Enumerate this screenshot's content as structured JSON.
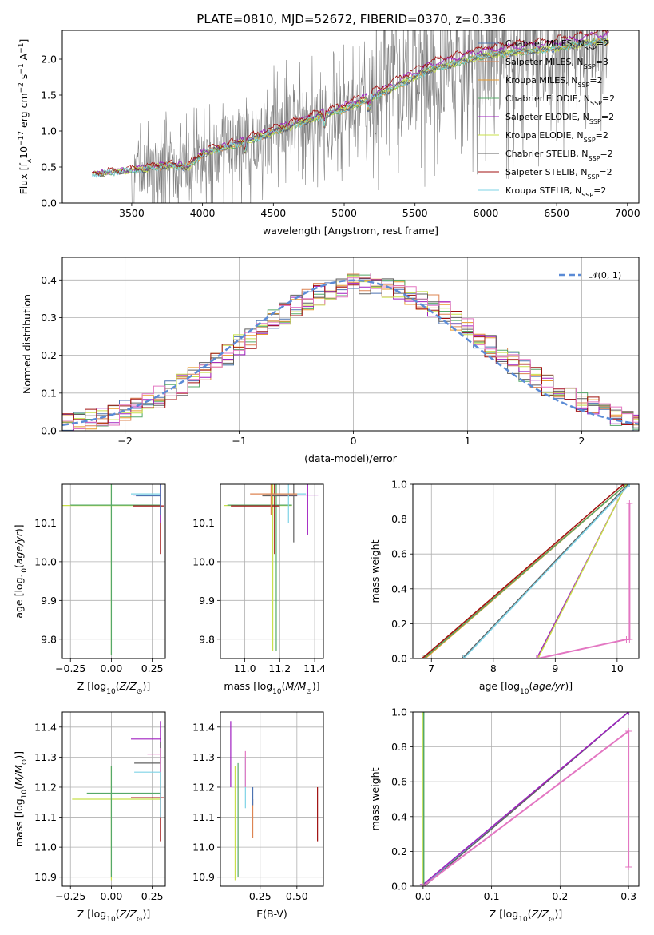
{
  "title": "PLATE=0810, MJD=52672, FIBERID=0370, z=0.336",
  "palette": {
    "Chabrier MILES": "#4c72b0",
    "Salpeter MILES": "#dd8452",
    "Kroupa MILES": "#e89a2c",
    "Chabrier ELODIE": "#55a868",
    "Salpeter ELODIE": "#a020c0",
    "Kroupa ELODIE": "#c8e04a",
    "Chabrier STELIB": "#606060",
    "Salpeter STELIB": "#a01010",
    "Kroupa STELIB": "#7ed3e6",
    "normal": "#5b8bd6",
    "pink": "#e377c2",
    "data": "#808080"
  },
  "chart_data": [
    {
      "id": "spectrum",
      "type": "line",
      "xlabel": "wavelength [Angstrom, rest frame]",
      "ylabel": "Flux [f_λ10^−17 erg cm^−2 s^−1 A^−1]",
      "xlim": [
        3010,
        7080
      ],
      "ylim": [
        0,
        2.4
      ],
      "xticks": [
        3500,
        4000,
        4500,
        5000,
        5500,
        6000,
        6500,
        7000
      ],
      "yticks": [
        0.0,
        0.5,
        1.0,
        1.5,
        2.0
      ],
      "legend_loc": "upper right",
      "legend": [
        {
          "base": "Chabrier MILES, N",
          "sub": "SSP",
          "tail": "=2"
        },
        {
          "base": "Salpeter MILES, N",
          "sub": "SSP",
          "tail": "=3"
        },
        {
          "base": "Kroupa MILES, N",
          "sub": "SSP",
          "tail": "=2"
        },
        {
          "base": "Chabrier ELODIE, N",
          "sub": "SSP",
          "tail": "=2"
        },
        {
          "base": "Salpeter ELODIE, N",
          "sub": "SSP",
          "tail": "=2"
        },
        {
          "base": "Kroupa ELODIE, N",
          "sub": "SSP",
          "tail": "=2"
        },
        {
          "base": "Chabrier STELIB, N",
          "sub": "SSP",
          "tail": "=2"
        },
        {
          "base": "Salpeter STELIB, N",
          "sub": "SSP",
          "tail": "=2"
        },
        {
          "base": "Kroupa STELIB, N",
          "sub": "SSP",
          "tail": "=2"
        }
      ],
      "continuum_knots": [
        [
          3220,
          0.4
        ],
        [
          3500,
          0.45
        ],
        [
          3750,
          0.52
        ],
        [
          3900,
          0.5
        ],
        [
          4000,
          0.68
        ],
        [
          4300,
          0.85
        ],
        [
          4600,
          1.05
        ],
        [
          5000,
          1.3
        ],
        [
          5300,
          1.55
        ],
        [
          5600,
          1.85
        ],
        [
          6000,
          2.05
        ],
        [
          6500,
          2.15
        ],
        [
          6800,
          2.25
        ]
      ],
      "model_range": [
        3220,
        6870
      ],
      "data_range": [
        3220,
        6870
      ]
    },
    {
      "id": "residuals",
      "type": "histogram",
      "xlabel": "(data-model)/error",
      "ylabel": "Normed distribution",
      "xlim": [
        -2.55,
        2.5
      ],
      "ylim": [
        0,
        0.46
      ],
      "xticks": [
        -2,
        -1,
        0,
        1,
        2
      ],
      "yticks": [
        0.0,
        0.1,
        0.2,
        0.3,
        0.4
      ],
      "legend_label": "𝒩(0, 1)",
      "bin_width": 0.1,
      "series_seeds": [
        3,
        7,
        11,
        13,
        17,
        19,
        23,
        29,
        31
      ]
    },
    {
      "id": "age_vs_Z",
      "type": "errorbar",
      "xlabel": "Z [log10(Z/Z⊙)]",
      "ylabel": "age  [log10(age/yr)]",
      "xlim": [
        -0.3,
        0.33
      ],
      "ylim": [
        9.75,
        10.2
      ],
      "xticks": [
        -0.25,
        0.0,
        0.25
      ],
      "yticks": [
        9.8,
        9.9,
        10.0,
        10.1
      ],
      "points": [
        {
          "s": "Kroupa ELODIE",
          "x": 0.0,
          "xlo": -0.32,
          "xhi": 0.3,
          "y": 10.145,
          "ylo": 9.76,
          "yhi": 10.21
        },
        {
          "s": "Chabrier ELODIE",
          "x": 0.0,
          "xlo": -0.25,
          "xhi": 0.3,
          "y": 10.146,
          "ylo": 9.76,
          "yhi": 10.21
        },
        {
          "s": "Salpeter STELIB",
          "x": 0.3,
          "xlo": 0.13,
          "xhi": 0.32,
          "y": 10.144,
          "ylo": 10.02,
          "yhi": 10.2
        },
        {
          "s": "Kroupa STELIB",
          "x": 0.3,
          "xlo": 0.12,
          "xhi": 0.3,
          "y": 10.175,
          "ylo": 10.1,
          "yhi": 10.2
        },
        {
          "s": "Salpeter ELODIE",
          "x": 0.3,
          "xlo": 0.13,
          "xhi": 0.3,
          "y": 10.172,
          "ylo": 10.1,
          "yhi": 10.2
        },
        {
          "s": "Chabrier MILES",
          "x": 0.3,
          "xlo": 0.15,
          "xhi": 0.3,
          "y": 10.17,
          "ylo": 10.12,
          "yhi": 10.2
        }
      ]
    },
    {
      "id": "age_vs_mass",
      "type": "errorbar",
      "xlabel": "mass [log10(M/M⊙)]",
      "ylabel": "",
      "xlim": [
        10.86,
        11.45
      ],
      "ylim": [
        9.75,
        10.2
      ],
      "xticks": [
        11.0,
        11.2,
        11.4
      ],
      "yticks": [
        9.8,
        9.9,
        10.0,
        10.1
      ],
      "points": [
        {
          "s": "Kroupa ELODIE",
          "x": 11.16,
          "xlo": 10.88,
          "xhi": 11.27,
          "y": 10.145,
          "ylo": 9.77,
          "yhi": 10.21
        },
        {
          "s": "Chabrier ELODIE",
          "x": 11.18,
          "xlo": 10.9,
          "xhi": 11.27,
          "y": 10.146,
          "ylo": 9.77,
          "yhi": 10.21
        },
        {
          "s": "Salpeter STELIB",
          "x": 11.17,
          "xlo": 10.92,
          "xhi": 11.2,
          "y": 10.144,
          "ylo": 10.02,
          "yhi": 10.2
        },
        {
          "s": "Chabrier STELIB",
          "x": 11.28,
          "xlo": 11.1,
          "xhi": 11.3,
          "y": 10.17,
          "ylo": 10.05,
          "yhi": 10.2
        },
        {
          "s": "Salpeter ELODIE",
          "x": 11.36,
          "xlo": 11.2,
          "xhi": 11.42,
          "y": 10.172,
          "ylo": 10.07,
          "yhi": 10.2
        },
        {
          "s": "Kroupa STELIB",
          "x": 11.25,
          "xlo": 11.12,
          "xhi": 11.35,
          "y": 10.175,
          "ylo": 10.1,
          "yhi": 10.2
        },
        {
          "s": "Salpeter MILES",
          "x": 11.15,
          "xlo": 11.03,
          "xhi": 11.3,
          "y": 10.175,
          "ylo": 10.12,
          "yhi": 10.2
        }
      ]
    },
    {
      "id": "age_weights",
      "type": "line",
      "xlabel": "age  [log10(age/yr)]",
      "ylabel": "mass weight",
      "xlim": [
        6.7,
        10.35
      ],
      "ylim": [
        0,
        1.0
      ],
      "xticks": [
        7,
        8,
        9,
        10
      ],
      "yticks": [
        0.0,
        0.2,
        0.4,
        0.6,
        0.8,
        1.0
      ],
      "series": [
        {
          "s": "Chabrier MILES",
          "x": [
            7.5,
            10.2
          ],
          "y": [
            0,
            1
          ]
        },
        {
          "s": "Salpeter MILES",
          "x": [
            6.85,
            10.15
          ],
          "y": [
            0,
            1
          ]
        },
        {
          "s": "Kroupa MILES",
          "x": [
            6.9,
            10.15
          ],
          "y": [
            0,
            1
          ]
        },
        {
          "s": "Chabrier ELODIE",
          "x": [
            6.88,
            10.15
          ],
          "y": [
            0,
            1
          ]
        },
        {
          "s": "Salpeter ELODIE",
          "x": [
            8.7,
            10.15
          ],
          "y": [
            0,
            1
          ]
        },
        {
          "s": "Kroupa ELODIE",
          "x": [
            8.72,
            10.15
          ],
          "y": [
            0,
            1
          ]
        },
        {
          "s": "Chabrier STELIB",
          "x": [
            7.5,
            10.18
          ],
          "y": [
            0,
            1
          ]
        },
        {
          "s": "Salpeter STELIB",
          "x": [
            6.85,
            10.1
          ],
          "y": [
            0,
            1
          ]
        },
        {
          "s": "Kroupa STELIB",
          "x": [
            7.52,
            10.2
          ],
          "y": [
            0,
            1
          ]
        },
        {
          "s": "pink",
          "x": [
            8.72,
            10.15,
            10.2,
            10.2
          ],
          "y": [
            0,
            0.11,
            0.11,
            0.89
          ]
        }
      ]
    },
    {
      "id": "mass_vs_Z",
      "type": "errorbar",
      "xlabel": "Z [log10(Z/Z⊙)]",
      "ylabel": "mass [log10(M/M⊙)]",
      "xlim": [
        -0.3,
        0.33
      ],
      "ylim": [
        10.87,
        11.45
      ],
      "xticks": [
        -0.25,
        0.0,
        0.25
      ],
      "yticks": [
        10.9,
        11.0,
        11.1,
        11.2,
        11.3,
        11.4
      ],
      "points": [
        {
          "s": "Kroupa ELODIE",
          "x": 0.0,
          "xlo": -0.24,
          "xhi": 0.3,
          "y": 11.16,
          "ylo": 10.89,
          "yhi": 11.27
        },
        {
          "s": "Chabrier ELODIE",
          "x": 0.0,
          "xlo": -0.15,
          "xhi": 0.3,
          "y": 11.18,
          "ylo": 10.9,
          "yhi": 11.27
        },
        {
          "s": "Salpeter STELIB",
          "x": 0.3,
          "xlo": 0.12,
          "xhi": 0.32,
          "y": 11.165,
          "ylo": 11.02,
          "yhi": 11.2
        },
        {
          "s": "Salpeter ELODIE",
          "x": 0.3,
          "xlo": 0.12,
          "xhi": 0.3,
          "y": 11.36,
          "ylo": 11.28,
          "yhi": 11.42
        },
        {
          "s": "Chabrier STELIB",
          "x": 0.3,
          "xlo": 0.14,
          "xhi": 0.3,
          "y": 11.28,
          "ylo": 11.2,
          "yhi": 11.35
        },
        {
          "s": "Kroupa STELIB",
          "x": 0.3,
          "xlo": 0.14,
          "xhi": 0.3,
          "y": 11.25,
          "ylo": 11.1,
          "yhi": 11.33
        },
        {
          "s": "pink",
          "x": 0.3,
          "xlo": 0.22,
          "xhi": 0.3,
          "y": 11.31,
          "ylo": 11.25,
          "yhi": 11.33
        }
      ]
    },
    {
      "id": "mass_vs_EBV",
      "type": "errorbar",
      "xlabel": "E(B-V)",
      "ylabel": "",
      "xlim": [
        -0.02,
        0.68
      ],
      "ylim": [
        10.87,
        11.45
      ],
      "xticks": [
        0.25,
        0.5
      ],
      "yticks": [
        10.9,
        11.0,
        11.1,
        11.2,
        11.3,
        11.4
      ],
      "points": [
        {
          "s": "Salpeter ELODIE",
          "x": 0.05,
          "y": 11.36,
          "ylo": 11.2,
          "yhi": 11.42
        },
        {
          "s": "Kroupa ELODIE",
          "x": 0.08,
          "y": 11.16,
          "ylo": 10.89,
          "yhi": 11.27
        },
        {
          "s": "Chabrier ELODIE",
          "x": 0.1,
          "y": 11.18,
          "ylo": 10.9,
          "yhi": 11.28
        },
        {
          "s": "Kroupa STELIB",
          "x": 0.15,
          "y": 11.22,
          "ylo": 11.13,
          "yhi": 11.3
        },
        {
          "s": "pink",
          "x": 0.15,
          "y": 11.28,
          "ylo": 11.2,
          "yhi": 11.32
        },
        {
          "s": "Salpeter MILES",
          "x": 0.2,
          "y": 11.1,
          "ylo": 11.03,
          "yhi": 11.16
        },
        {
          "s": "Chabrier MILES",
          "x": 0.2,
          "y": 11.17,
          "ylo": 11.14,
          "yhi": 11.2
        },
        {
          "s": "Salpeter STELIB",
          "x": 0.64,
          "y": 11.1,
          "ylo": 11.02,
          "yhi": 11.2
        }
      ]
    },
    {
      "id": "Z_weights",
      "type": "line",
      "xlabel": "Z [log10(Z/Z⊙)]",
      "ylabel": "mass weight",
      "xlim": [
        -0.015,
        0.315
      ],
      "ylim": [
        0,
        1.0
      ],
      "xticks": [
        0.0,
        0.1,
        0.2,
        0.3
      ],
      "yticks": [
        0.0,
        0.2,
        0.4,
        0.6,
        0.8,
        1.0
      ],
      "series": [
        {
          "s": "Chabrier MILES",
          "x": [
            0.0,
            0.3
          ],
          "y": [
            0,
            1
          ]
        },
        {
          "s": "Kroupa STELIB",
          "x": [
            0.001,
            0.3
          ],
          "y": [
            0,
            1
          ]
        },
        {
          "s": "Chabrier STELIB",
          "x": [
            0.002,
            0.3
          ],
          "y": [
            0,
            1
          ]
        },
        {
          "s": "Salpeter ELODIE",
          "x": [
            0.0,
            0.3
          ],
          "y": [
            0.01,
            1
          ]
        },
        {
          "s": "Kroupa ELODIE",
          "x": [
            0.0,
            0.0
          ],
          "y": [
            0,
            1
          ]
        },
        {
          "s": "Chabrier ELODIE",
          "x": [
            0.001,
            0.001
          ],
          "y": [
            0,
            1
          ]
        },
        {
          "s": "pink",
          "x": [
            0.0,
            0.3,
            0.3,
            0.3
          ],
          "y": [
            0,
            0.89,
            0.89,
            0.11
          ]
        }
      ]
    }
  ]
}
